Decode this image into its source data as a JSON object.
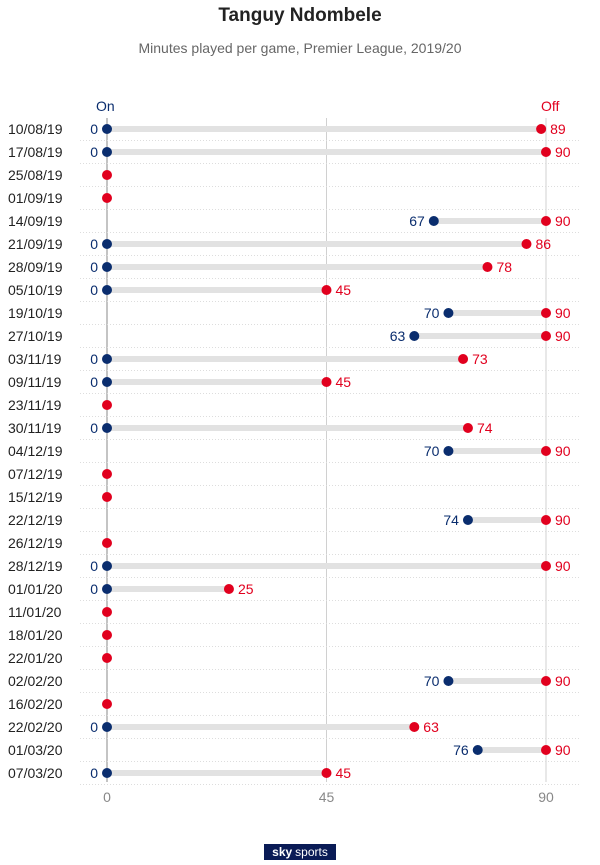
{
  "title": "Tanguy Ndombele",
  "subtitle": "Minutes played per game, Premier League, 2019/20",
  "logo": {
    "sky": "sky",
    "sports": "sports"
  },
  "chart_data": {
    "type": "dumbbell",
    "title": "Tanguy Ndombele",
    "subtitle": "Minutes played per game, Premier League, 2019/20",
    "legend": {
      "on": "On",
      "off": "Off"
    },
    "xlim": [
      0,
      90
    ],
    "xticks": [
      0,
      45,
      90
    ],
    "grid": true,
    "colors": {
      "on": "#0a2d6e",
      "off": "#e1001e",
      "bar": "#e2e2e2",
      "grid": "#d0d0d0"
    },
    "rows": [
      {
        "date": "10/08/19",
        "on": 0,
        "off": 89
      },
      {
        "date": "17/08/19",
        "on": 0,
        "off": 90
      },
      {
        "date": "25/08/19",
        "on": null,
        "off": 0
      },
      {
        "date": "01/09/19",
        "on": null,
        "off": 0
      },
      {
        "date": "14/09/19",
        "on": 67,
        "off": 90
      },
      {
        "date": "21/09/19",
        "on": 0,
        "off": 86
      },
      {
        "date": "28/09/19",
        "on": 0,
        "off": 78
      },
      {
        "date": "05/10/19",
        "on": 0,
        "off": 45
      },
      {
        "date": "19/10/19",
        "on": 70,
        "off": 90
      },
      {
        "date": "27/10/19",
        "on": 63,
        "off": 90
      },
      {
        "date": "03/11/19",
        "on": 0,
        "off": 73
      },
      {
        "date": "09/11/19",
        "on": 0,
        "off": 45
      },
      {
        "date": "23/11/19",
        "on": null,
        "off": 0
      },
      {
        "date": "30/11/19",
        "on": 0,
        "off": 74
      },
      {
        "date": "04/12/19",
        "on": 70,
        "off": 90
      },
      {
        "date": "07/12/19",
        "on": null,
        "off": 0
      },
      {
        "date": "15/12/19",
        "on": null,
        "off": 0
      },
      {
        "date": "22/12/19",
        "on": 74,
        "off": 90
      },
      {
        "date": "26/12/19",
        "on": null,
        "off": 0
      },
      {
        "date": "28/12/19",
        "on": 0,
        "off": 90
      },
      {
        "date": "01/01/20",
        "on": 0,
        "off": 25
      },
      {
        "date": "11/01/20",
        "on": null,
        "off": 0
      },
      {
        "date": "18/01/20",
        "on": null,
        "off": 0
      },
      {
        "date": "22/01/20",
        "on": null,
        "off": 0
      },
      {
        "date": "02/02/20",
        "on": 70,
        "off": 90
      },
      {
        "date": "16/02/20",
        "on": null,
        "off": 0
      },
      {
        "date": "22/02/20",
        "on": 0,
        "off": 63
      },
      {
        "date": "01/03/20",
        "on": 76,
        "off": 90
      },
      {
        "date": "07/03/20",
        "on": 0,
        "off": 45
      }
    ]
  }
}
